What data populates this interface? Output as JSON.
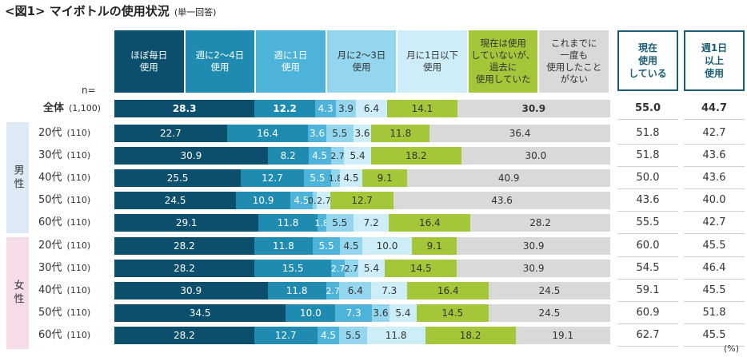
{
  "title": "<図1> マイボトルの使用状況",
  "title_note": "(単一回答)",
  "n_label": "n=",
  "percent_unit": "(%)",
  "gender_labels": {
    "male": "男性",
    "female": "女性"
  },
  "chart_data": {
    "type": "bar",
    "orientation": "horizontal",
    "stacked": true,
    "value_unit": "%",
    "series": [
      {
        "name": "ほぼ毎日\n使用",
        "color": "#0b4f6c"
      },
      {
        "name": "週に2～4日\n使用",
        "color": "#1f8bb0"
      },
      {
        "name": "週に1日\n使用",
        "color": "#4db3d9"
      },
      {
        "name": "月に2～3日\n使用",
        "color": "#93d6ee"
      },
      {
        "name": "月に1日以下\n使用",
        "color": "#cdeef8"
      },
      {
        "name": "現在は使用\nしていないが、\n過去に\n使用していた",
        "color": "#a4c639"
      },
      {
        "name": "これまでに\n一度も\n使用したこと\nがない",
        "color": "#d9d9d9"
      }
    ],
    "summary_columns": [
      {
        "name": "現在\n使用\nしている"
      },
      {
        "name": "週1日\n以上\n使用"
      }
    ],
    "rows": [
      {
        "label": "全体",
        "n": "(1,100)",
        "values": [
          28.3,
          12.2,
          4.3,
          3.9,
          6.4,
          14.1,
          30.9
        ],
        "summary": [
          "55.0",
          "44.7"
        ]
      },
      {
        "label": "20代",
        "n": "(110)",
        "values": [
          22.7,
          16.4,
          3.6,
          5.5,
          3.6,
          11.8,
          36.4
        ],
        "summary": [
          "51.8",
          "42.7"
        ]
      },
      {
        "label": "30代",
        "n": "(110)",
        "values": [
          30.9,
          8.2,
          4.5,
          2.7,
          5.4,
          18.2,
          30.0
        ],
        "summary": [
          "51.8",
          "43.6"
        ]
      },
      {
        "label": "40代",
        "n": "(110)",
        "values": [
          25.5,
          12.7,
          5.5,
          1.8,
          4.5,
          9.1,
          40.9
        ],
        "summary": [
          "50.0",
          "43.6"
        ]
      },
      {
        "label": "50代",
        "n": "(110)",
        "values": [
          24.5,
          10.9,
          4.5,
          0.9,
          2.7,
          12.7,
          43.6
        ],
        "summary": [
          "43.6",
          "40.0"
        ]
      },
      {
        "label": "60代",
        "n": "(110)",
        "values": [
          29.1,
          11.8,
          1.8,
          5.5,
          7.2,
          16.4,
          28.2
        ],
        "summary": [
          "55.5",
          "42.7"
        ]
      },
      {
        "label": "20代",
        "n": "(110)",
        "values": [
          28.2,
          11.8,
          5.5,
          4.5,
          10.0,
          9.1,
          30.9
        ],
        "summary": [
          "60.0",
          "45.5"
        ]
      },
      {
        "label": "30代",
        "n": "(110)",
        "values": [
          28.2,
          15.5,
          2.7,
          2.7,
          5.4,
          14.5,
          30.9
        ],
        "summary": [
          "54.5",
          "46.4"
        ]
      },
      {
        "label": "40代",
        "n": "(110)",
        "values": [
          30.9,
          11.8,
          2.7,
          6.4,
          7.3,
          16.4,
          24.5
        ],
        "summary": [
          "59.1",
          "45.5"
        ]
      },
      {
        "label": "50代",
        "n": "(110)",
        "values": [
          34.5,
          10.0,
          7.3,
          3.6,
          5.4,
          14.5,
          24.5
        ],
        "summary": [
          "60.9",
          "51.8"
        ]
      },
      {
        "label": "60代",
        "n": "(110)",
        "values": [
          28.2,
          12.7,
          4.5,
          5.5,
          11.8,
          18.2,
          19.1
        ],
        "summary": [
          "62.7",
          "45.5"
        ]
      }
    ]
  }
}
